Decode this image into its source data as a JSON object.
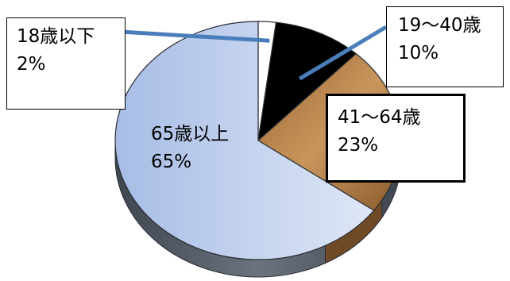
{
  "chart_data": {
    "type": "pie",
    "title": "",
    "slices": [
      {
        "label": "18歳以下",
        "value": 2,
        "value_label": "2%",
        "color": "#ffffff"
      },
      {
        "label": "19〜40歳",
        "value": 10,
        "value_label": "10%",
        "color": "#000000"
      },
      {
        "label": "41〜64歳",
        "value": 23,
        "value_label": "23%",
        "color": "#b07c4a"
      },
      {
        "label": "65歳以上",
        "value": 65,
        "value_label": "65%",
        "color": "#b9ccec"
      }
    ],
    "style": "3d-tilted",
    "leader_line_color": "#4a7ebb"
  }
}
